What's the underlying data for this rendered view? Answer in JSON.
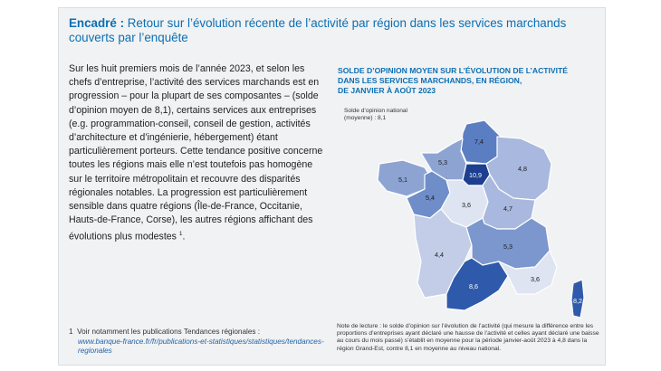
{
  "header": {
    "prefix": "Encadré :",
    "title": "Retour sur l’évolution récente de l’activité par région dans les services marchands couverts par l’enquête"
  },
  "body_text": "Sur les huit premiers mois de l’année 2023, et selon les chefs d’entreprise, l’activité des services marchands est en progression – pour la plupart de ses composantes – (solde d’opinion moyen de 8,1), certains services aux entreprises (e.g. programmation-conseil, conseil de gestion, activités d’architecture et d’ingénierie, hébergement) étant particulièrement porteurs. Cette tendance positive concerne toutes les régions mais elle n’est toutefois pas homogène sur le territoire métropolitain et recouvre des disparités régionales notables. La progression est particulièrement sensible dans quatre régions (Île-de-France, Occitanie, Hauts-de-France, Corse), les autres régions affichant des évolutions plus modestes",
  "body_note_ref": "1",
  "footnote": {
    "number": "1",
    "text": "Voir notamment les publications Tendances régionales :",
    "link": "www.banque-france.fr/fr/publications-et-statistiques/statistiques/tendances-regionales"
  },
  "map": {
    "title_line1": "SOLDE D’OPINION MOYEN SUR L’ÉVOLUTION DE L’ACTIVITÉ",
    "title_line2": "DANS LES SERVICES MARCHANDS, EN RÉGION,",
    "title_line3": "DE JANVIER À AOÛT 2023",
    "national_label_line1": "Solde d’opinion national",
    "national_label_line2": "(moyenne) : 8,1",
    "reading_note": "Note de lecture : le solde d’opinion sur l’évolution de l’activité (qui mesure la différence entre les proportions d’entreprises ayant déclaré une hausse de l’activité et celles ayant déclaré une baisse au cours du mois passé) s’établit en moyenne pour la période janvier-août 2023 à 4,8 dans la région Grand-Est, contre 8,1 en moyenne au niveau national.",
    "regions": [
      {
        "name": "Hauts-de-France",
        "value": "7,4",
        "color": "#5b7ec2"
      },
      {
        "name": "Normandie",
        "value": "5,3",
        "color": "#8da4d3"
      },
      {
        "name": "Île-de-France",
        "value": "10,9",
        "color": "#1d3f8f"
      },
      {
        "name": "Grand Est",
        "value": "4,8",
        "color": "#a9b8de"
      },
      {
        "name": "Bretagne",
        "value": "5,1",
        "color": "#8da4d3"
      },
      {
        "name": "Pays de la Loire",
        "value": "5,4",
        "color": "#6f8ec9"
      },
      {
        "name": "Centre-Val de Loire",
        "value": "3,6",
        "color": "#dfe4f2"
      },
      {
        "name": "Bourgogne-Franche-Comté",
        "value": "4,7",
        "color": "#a9b8de"
      },
      {
        "name": "Nouvelle-Aquitaine",
        "value": "4,4",
        "color": "#c3cde8"
      },
      {
        "name": "Auvergne-Rhône-Alpes",
        "value": "5,3",
        "color": "#7c97cd"
      },
      {
        "name": "Occitanie",
        "value": "8,6",
        "color": "#2f5aab"
      },
      {
        "name": "Provence-Alpes-Côte d’Azur",
        "value": "3,6",
        "color": "#dfe4f2"
      },
      {
        "name": "Corse",
        "value": "8,2",
        "color": "#2f5aab"
      }
    ]
  }
}
